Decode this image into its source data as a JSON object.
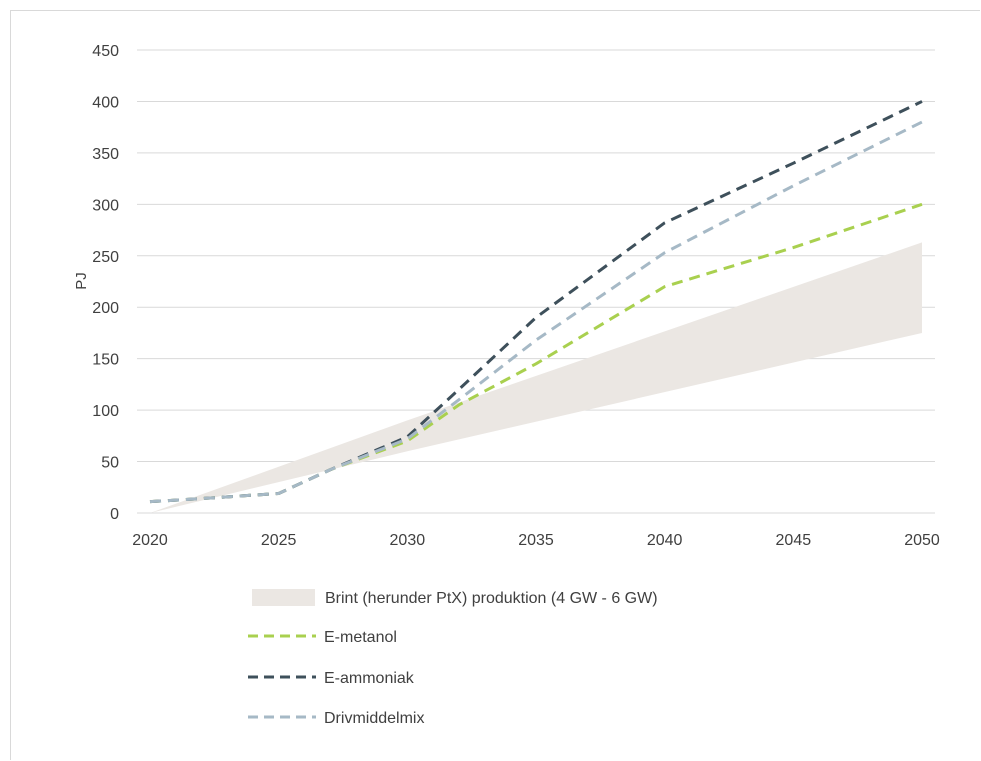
{
  "chart_data": {
    "type": "line",
    "ylabel": "PJ",
    "xlabel": "",
    "xlim": [
      2020,
      2050
    ],
    "ylim": [
      0,
      450
    ],
    "x_ticks": [
      "2020",
      "2025",
      "2030",
      "2035",
      "2040",
      "2045",
      "2050"
    ],
    "y_ticks": [
      "0",
      "50",
      "100",
      "150",
      "200",
      "250",
      "300",
      "350",
      "400",
      "450"
    ],
    "grid": "horizontal",
    "legend_position": "bottom",
    "band": {
      "name": "Brint (herunder PtX) produktion (4 GW - 6 GW)",
      "color": "#ebe7e3",
      "x": [
        2020,
        2030,
        2050
      ],
      "lower": [
        0,
        60,
        175
      ],
      "upper": [
        0,
        90,
        263
      ]
    },
    "series": [
      {
        "name": "E-metanol",
        "color": "#a9d04f",
        "x": [
          2020,
          2022,
          2025,
          2027,
          2030,
          2032,
          2035,
          2040,
          2045,
          2050
        ],
        "y": [
          11,
          14,
          19,
          42,
          70,
          105,
          145,
          220,
          258,
          300
        ]
      },
      {
        "name": "E-ammoniak",
        "color": "#3e505b",
        "x": [
          2020,
          2022,
          2025,
          2027,
          2030,
          2032,
          2035,
          2040,
          2045,
          2050
        ],
        "y": [
          11,
          14,
          19,
          42,
          74,
          120,
          190,
          282,
          340,
          400
        ]
      },
      {
        "name": "Drivmiddelmix",
        "color": "#a6b9c6",
        "x": [
          2020,
          2022,
          2025,
          2027,
          2030,
          2032,
          2035,
          2040,
          2045,
          2050
        ],
        "y": [
          11,
          14,
          19,
          42,
          72,
          110,
          168,
          253,
          318,
          380
        ]
      }
    ]
  }
}
